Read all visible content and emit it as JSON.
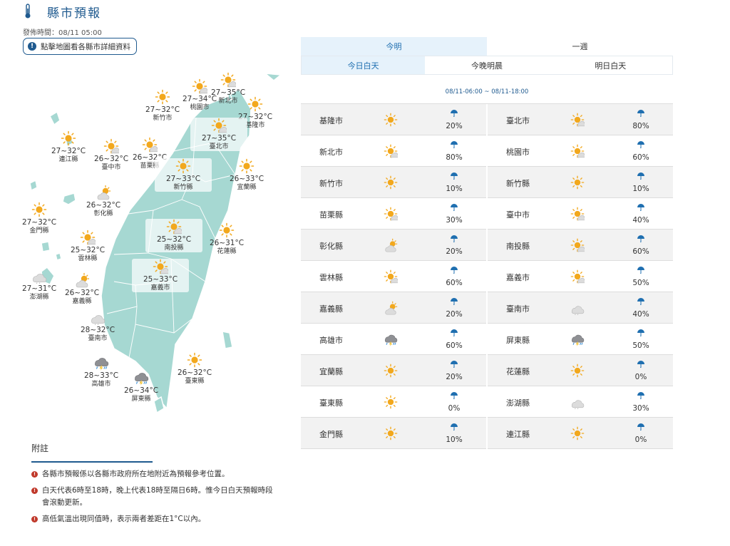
{
  "header": {
    "title": "縣市預報"
  },
  "issue_time": "發佈時間：08/11 05:00",
  "map_hint": {
    "label": "點擊地圖看各縣市詳細資料"
  },
  "tabs_main": [
    {
      "label": "今明"
    },
    {
      "label": "一週"
    }
  ],
  "tabs_sub": [
    {
      "label": "今日白天"
    },
    {
      "label": "今晚明晨"
    },
    {
      "label": "明日白天"
    }
  ],
  "range": "08/11-06:00 ~ 08/11-18:00",
  "map_labels": [
    {
      "temp": "27~32°C",
      "name": "新竹市",
      "icon": "sun-icon"
    },
    {
      "temp": "27~34°C",
      "name": "桃園市",
      "icon": "sun-cloud-icon"
    },
    {
      "temp": "27~35°C",
      "name": "新北市",
      "icon": "sun-cloud-icon"
    },
    {
      "temp": "27~32°C",
      "name": "基隆市",
      "icon": "sun-icon"
    },
    {
      "temp": "27~35°C",
      "name": "臺北市",
      "icon": "sun-cloud-icon"
    },
    {
      "temp": "27~32°C",
      "name": "連江縣",
      "icon": "sun-icon"
    },
    {
      "temp": "26~32°C",
      "name": "臺中市",
      "icon": "sun-cloud-icon"
    },
    {
      "temp": "26~32°C",
      "name": "苗栗縣",
      "icon": "sun-cloud-icon"
    },
    {
      "temp": "27~33°C",
      "name": "新竹縣",
      "icon": "sun-icon"
    },
    {
      "temp": "26~33°C",
      "name": "宜蘭縣",
      "icon": "sun-icon"
    },
    {
      "temp": "26~32°C",
      "name": "彰化縣",
      "icon": "cloud-sun-icon"
    },
    {
      "temp": "27~32°C",
      "name": "金門縣",
      "icon": "sun-icon"
    },
    {
      "temp": "25~32°C",
      "name": "南投縣",
      "icon": "sun-cloud-icon"
    },
    {
      "temp": "26~31°C",
      "name": "花蓮縣",
      "icon": "sun-icon"
    },
    {
      "temp": "25~32°C",
      "name": "雲林縣",
      "icon": "sun-cloud-icon"
    },
    {
      "temp": "27~31°C",
      "name": "澎湖縣",
      "icon": "cloud-icon"
    },
    {
      "temp": "26~32°C",
      "name": "嘉義縣",
      "icon": "cloud-sun-icon"
    },
    {
      "temp": "25~33°C",
      "name": "嘉義市",
      "icon": "sun-cloud-icon"
    },
    {
      "temp": "28~32°C",
      "name": "臺南市",
      "icon": "cloud-icon"
    },
    {
      "temp": "28~33°C",
      "name": "高雄市",
      "icon": "thunder-rain-icon"
    },
    {
      "temp": "26~34°C",
      "name": "屏東縣",
      "icon": "thunder-rain-icon"
    },
    {
      "temp": "26~32°C",
      "name": "臺東縣",
      "icon": "sun-icon"
    }
  ],
  "rows": [
    [
      {
        "name": "基隆市",
        "icon": "sun-icon",
        "pop": "20%"
      },
      {
        "name": "臺北市",
        "icon": "sun-cloud-icon",
        "pop": "80%"
      }
    ],
    [
      {
        "name": "新北市",
        "icon": "sun-cloud-icon",
        "pop": "80%"
      },
      {
        "name": "桃園市",
        "icon": "sun-cloud-icon",
        "pop": "60%"
      }
    ],
    [
      {
        "name": "新竹市",
        "icon": "sun-icon",
        "pop": "10%"
      },
      {
        "name": "新竹縣",
        "icon": "sun-icon",
        "pop": "10%"
      }
    ],
    [
      {
        "name": "苗栗縣",
        "icon": "sun-cloud-icon",
        "pop": "30%"
      },
      {
        "name": "臺中市",
        "icon": "sun-cloud-icon",
        "pop": "40%"
      }
    ],
    [
      {
        "name": "彰化縣",
        "icon": "cloud-sun-icon",
        "pop": "20%"
      },
      {
        "name": "南投縣",
        "icon": "sun-cloud-icon",
        "pop": "60%"
      }
    ],
    [
      {
        "name": "雲林縣",
        "icon": "sun-cloud-icon",
        "pop": "60%"
      },
      {
        "name": "嘉義市",
        "icon": "sun-cloud-icon",
        "pop": "50%"
      }
    ],
    [
      {
        "name": "嘉義縣",
        "icon": "cloud-sun-icon",
        "pop": "20%"
      },
      {
        "name": "臺南市",
        "icon": "cloud-icon",
        "pop": "40%"
      }
    ],
    [
      {
        "name": "高雄市",
        "icon": "thunder-rain-icon",
        "pop": "60%"
      },
      {
        "name": "屏東縣",
        "icon": "thunder-rain-icon",
        "pop": "50%"
      }
    ],
    [
      {
        "name": "宜蘭縣",
        "icon": "sun-icon",
        "pop": "20%"
      },
      {
        "name": "花蓮縣",
        "icon": "sun-icon",
        "pop": "0%"
      }
    ],
    [
      {
        "name": "臺東縣",
        "icon": "sun-icon",
        "pop": "0%"
      },
      {
        "name": "澎湖縣",
        "icon": "cloud-icon",
        "pop": "30%"
      }
    ],
    [
      {
        "name": "金門縣",
        "icon": "sun-icon",
        "pop": "10%"
      },
      {
        "name": "連江縣",
        "icon": "sun-icon",
        "pop": "0%"
      }
    ]
  ],
  "notes": {
    "title": "附註",
    "items": [
      "各縣市預報係以各縣市政府所在地附近為預報參考位置。",
      "白天代表6時至18時，晚上代表18時至隔日6時。惟今日白天預報時段會滾動更新。",
      "高低氣溫出現同值時，表示兩者差距在1°C以內。"
    ]
  },
  "colors": {
    "accent": "#1f5a8f",
    "tab_active_bg": "#e6f2fb",
    "land": "#a6d8d2",
    "land_stroke": "#ffffff",
    "row_alt": "#f2f2f2",
    "note_bullet": "#c0392b"
  }
}
